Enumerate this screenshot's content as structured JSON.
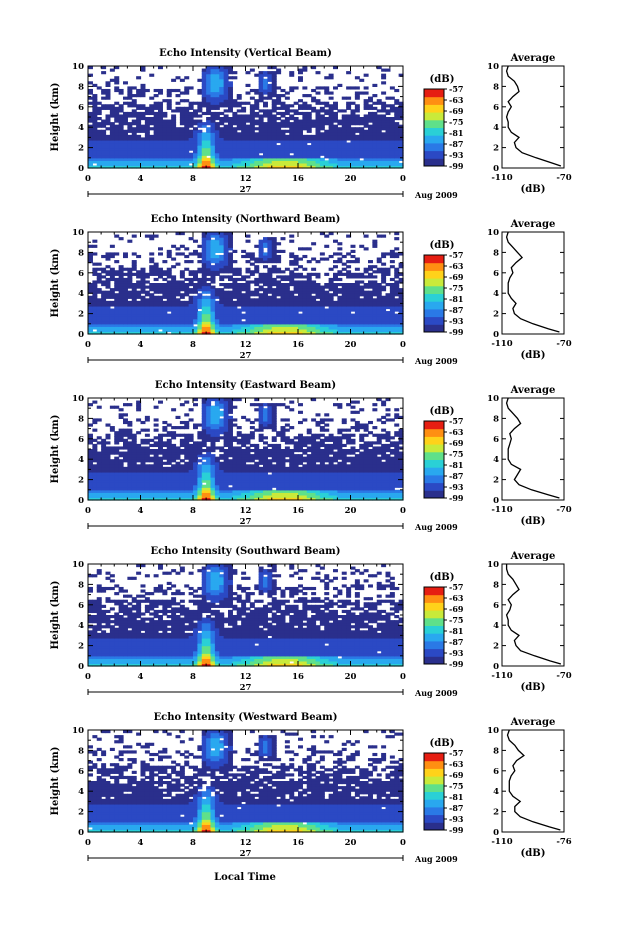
{
  "xlabel_bottom": "Local Time",
  "colorbar": {
    "unit_label": "(dB)",
    "tick_labels": [
      "-57",
      "-63",
      "-69",
      "-75",
      "-81",
      "-87",
      "-93",
      "-99"
    ],
    "range": [
      -99,
      -57
    ],
    "colors": [
      "#2a2f8c",
      "#2b49c4",
      "#2a79e6",
      "#29a8ef",
      "#2ad0d6",
      "#5fe08a",
      "#c9ea3a",
      "#ffd21a",
      "#ff8f12",
      "#e61e12"
    ]
  },
  "chart_data": [
    {
      "type": "heatmap",
      "title": "Echo Intensity (Vertical Beam)",
      "ylabel": "Height (km)",
      "x_ticks": [
        "0",
        "4",
        "8",
        "12",
        "16",
        "20",
        "0"
      ],
      "xlim": [
        0,
        24
      ],
      "ylim": [
        0,
        10
      ],
      "y_ticks": [
        "0",
        "2",
        "4",
        "6",
        "8",
        "10"
      ],
      "date_day": "27",
      "date_label": "Aug 2009",
      "profile": {
        "title": "Average",
        "xlabel": "(dB)",
        "x_ticks": [
          "-110",
          "-70"
        ],
        "xlim": [
          -110,
          -70
        ],
        "heights": [
          0.2,
          0.5,
          1,
          1.5,
          2,
          2.5,
          3,
          3.5,
          4,
          4.5,
          5,
          5.5,
          6,
          6.5,
          7,
          7.5,
          8,
          8.5,
          9,
          9.5,
          10
        ],
        "values": [
          -72,
          -78,
          -88,
          -97,
          -101,
          -102,
          -99,
          -104,
          -106,
          -106,
          -107,
          -106,
          -104,
          -106,
          -103,
          -99,
          -100,
          -102,
          -106,
          -107,
          -106
        ]
      }
    },
    {
      "type": "heatmap",
      "title": "Echo Intensity (Northward Beam)",
      "ylabel": "Height (km)",
      "x_ticks": [
        "0",
        "4",
        "8",
        "12",
        "16",
        "20",
        "0"
      ],
      "xlim": [
        0,
        24
      ],
      "ylim": [
        0,
        10
      ],
      "y_ticks": [
        "0",
        "2",
        "4",
        "6",
        "8",
        "10"
      ],
      "date_day": "27",
      "date_label": "Aug 2009",
      "profile": {
        "title": "Average",
        "xlabel": "(dB)",
        "x_ticks": [
          "-110",
          "-70"
        ],
        "xlim": [
          -110,
          -70
        ],
        "heights": [
          0.2,
          0.5,
          1,
          1.5,
          2,
          2.5,
          3,
          3.5,
          4,
          4.5,
          5,
          5.5,
          6,
          6.5,
          7,
          7.5,
          8,
          8.5,
          9,
          9.5,
          10
        ],
        "values": [
          -73,
          -80,
          -90,
          -98,
          -102,
          -103,
          -101,
          -104,
          -106,
          -106,
          -106,
          -105,
          -103,
          -104,
          -101,
          -97,
          -100,
          -103,
          -106,
          -107,
          -106
        ]
      }
    },
    {
      "type": "heatmap",
      "title": "Echo Intensity (Eastward Beam)",
      "ylabel": "Height (km)",
      "x_ticks": [
        "0",
        "4",
        "8",
        "12",
        "16",
        "20",
        "0"
      ],
      "xlim": [
        0,
        24
      ],
      "ylim": [
        0,
        10
      ],
      "y_ticks": [
        "0",
        "2",
        "4",
        "6",
        "8",
        "10"
      ],
      "date_day": "27",
      "date_label": "Aug 2009",
      "profile": {
        "title": "Average",
        "xlabel": "(dB)",
        "x_ticks": [
          "-110",
          "-70"
        ],
        "xlim": [
          -110,
          -70
        ],
        "heights": [
          0.2,
          0.5,
          1,
          1.5,
          2,
          2.5,
          3,
          3.5,
          4,
          4.5,
          5,
          5.5,
          6,
          6.5,
          7,
          7.5,
          8,
          8.5,
          9,
          9.5,
          10
        ],
        "values": [
          -73,
          -80,
          -91,
          -99,
          -102,
          -100,
          -98,
          -104,
          -106,
          -106,
          -106,
          -105,
          -104,
          -105,
          -102,
          -98,
          -100,
          -103,
          -106,
          -107,
          -106
        ]
      }
    },
    {
      "type": "heatmap",
      "title": "Echo Intensity (Southward Beam)",
      "ylabel": "Height (km)",
      "x_ticks": [
        "0",
        "4",
        "8",
        "12",
        "16",
        "20",
        "0"
      ],
      "xlim": [
        0,
        24
      ],
      "ylim": [
        0,
        10
      ],
      "y_ticks": [
        "0",
        "2",
        "4",
        "6",
        "8",
        "10"
      ],
      "date_day": "27",
      "date_label": "Aug 2009",
      "profile": {
        "title": "Average",
        "xlabel": "(dB)",
        "x_ticks": [
          "-110",
          "-70"
        ],
        "xlim": [
          -110,
          -70
        ],
        "heights": [
          0.2,
          0.5,
          1,
          1.5,
          2,
          2.5,
          3,
          3.5,
          4,
          4.5,
          5,
          5.5,
          6,
          6.5,
          7,
          7.5,
          8,
          8.5,
          9,
          9.5,
          10
        ],
        "values": [
          -72,
          -79,
          -89,
          -98,
          -101,
          -102,
          -99,
          -104,
          -106,
          -106,
          -107,
          -105,
          -104,
          -106,
          -103,
          -99,
          -101,
          -103,
          -106,
          -107,
          -107
        ]
      }
    },
    {
      "type": "heatmap",
      "title": "Echo Intensity (Westward Beam)",
      "ylabel": "Height (km)",
      "x_ticks": [
        "0",
        "4",
        "8",
        "12",
        "16",
        "20",
        "0"
      ],
      "xlim": [
        0,
        24
      ],
      "ylim": [
        0,
        10
      ],
      "y_ticks": [
        "0",
        "2",
        "4",
        "6",
        "8",
        "10"
      ],
      "date_day": "27",
      "date_label": "Aug 2009",
      "profile": {
        "title": "Average",
        "xlabel": "(dB)",
        "x_ticks": [
          "-110",
          "-76"
        ],
        "xlim": [
          -110,
          -76
        ],
        "heights": [
          0.2,
          0.5,
          1,
          1.5,
          2,
          2.5,
          3,
          3.5,
          4,
          4.5,
          5,
          5.5,
          6,
          6.5,
          7,
          7.5,
          8,
          8.5,
          9,
          9.5,
          10
        ],
        "values": [
          -78,
          -84,
          -93,
          -100,
          -103,
          -103,
          -100,
          -104,
          -106,
          -106,
          -106,
          -105,
          -103,
          -104,
          -102,
          -98,
          -101,
          -103,
          -106,
          -107,
          -106
        ]
      }
    }
  ]
}
